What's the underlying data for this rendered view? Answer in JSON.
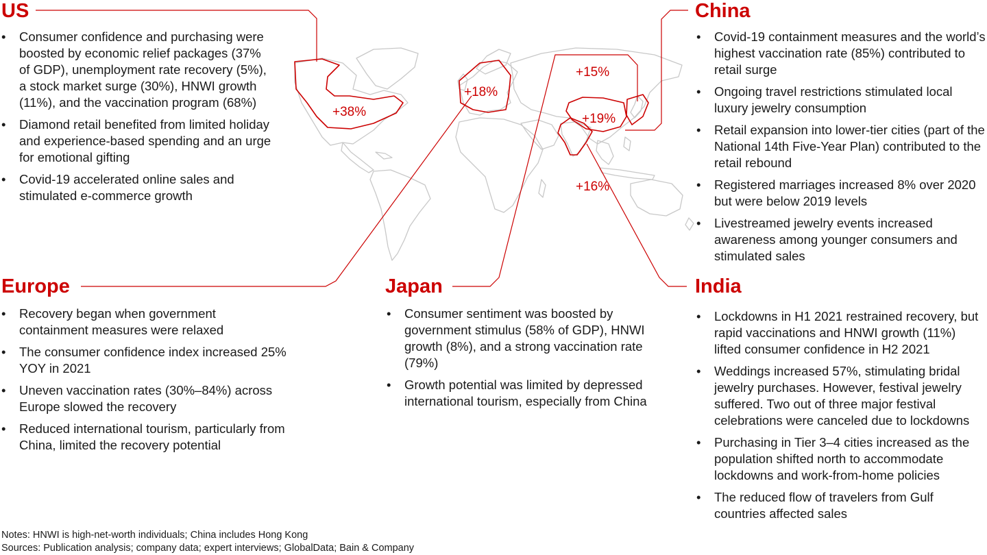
{
  "regions": {
    "us": {
      "title": "US",
      "growth": "+38%",
      "bullets": [
        "Consumer confidence and purchasing were boosted by economic relief packages (37% of GDP), unemployment rate recovery (5%), a stock market surge (30%), HNWI growth (11%), and the vaccination program (68%)",
        "Diamond retail benefited from limited holiday and experience-based spending and an urge for emotional gifting",
        "Covid-19 accelerated online sales and stimulated e-commerce growth"
      ]
    },
    "europe": {
      "title": "Europe",
      "growth": "+18%",
      "bullets": [
        "Recovery began when government containment measures were relaxed",
        "The consumer confidence index increased 25% YOY in 2021",
        "Uneven vaccination rates (30%–84%) across Europe slowed the recovery",
        "Reduced international tourism, particularly from China, limited the recovery potential"
      ]
    },
    "japan": {
      "title": "Japan",
      "growth": "+15%",
      "bullets": [
        "Consumer sentiment was boosted by government stimulus (58% of GDP), HNWI growth (8%), and a strong vaccination rate (79%)",
        "Growth potential was limited by depressed international tourism, especially from China"
      ]
    },
    "china": {
      "title": "China",
      "growth": "+19%",
      "bullets": [
        "Covid-19 containment measures and the world’s highest vaccination rate (85%) contributed to retail surge",
        "Ongoing travel restrictions stimulated local luxury jewelry consumption",
        "Retail expansion into lower-tier cities (part of the National 14th Five-Year Plan) contributed to the retail rebound",
        "Registered marriages increased 8% over 2020 but were below 2019 levels",
        "Livestreamed jewelry events increased awareness among younger consumers and stimulated sales"
      ]
    },
    "india": {
      "title": "India",
      "growth": "+16%",
      "bullets": [
        "Lockdowns in H1 2021 restrained recovery, but rapid vaccinations and HNWI growth (11%) lifted consumer confidence in H2 2021",
        "Weddings increased 57%, stimulating bridal jewelry purchases. However, festival jewelry suffered. Two out of three major festival celebrations were canceled due to lockdowns",
        "Purchasing in Tier 3–4 cities increased as the population shifted north to accommodate lockdowns and work-from-home policies",
        "The reduced flow of travelers from Gulf countries affected sales"
      ]
    }
  },
  "footnotes": {
    "notes": "Notes: HNWI is high-net-worth individuals; China includes Hong Kong",
    "sources": "Sources: Publication analysis; company data; expert interviews; GlobalData; Bain & Company"
  },
  "colors": {
    "accent": "#cc0000",
    "map_outline": "#c8c8c8",
    "text": "#1a1a1a"
  }
}
